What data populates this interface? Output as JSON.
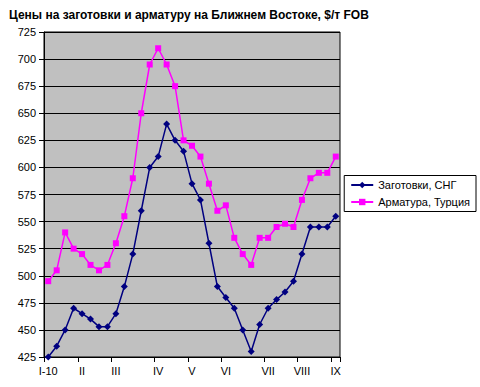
{
  "chart_data": {
    "type": "line",
    "title": "Цены на заготовки и арматуру на Ближнем Востоке, $/т FOB",
    "categories": [
      "I-10",
      null,
      null,
      null,
      "II",
      null,
      null,
      null,
      "III",
      null,
      null,
      null,
      null,
      "IV",
      null,
      null,
      null,
      "V",
      null,
      null,
      null,
      "VI",
      null,
      null,
      null,
      null,
      "VII",
      null,
      null,
      null,
      "VIII",
      null,
      null,
      null,
      "IX"
    ],
    "series": [
      {
        "name": "Заготовки, СНГ",
        "color": "#000080",
        "marker": "diamond",
        "line_style": "solid",
        "values": [
          425,
          435,
          450,
          470,
          465,
          460,
          453,
          453,
          465,
          490,
          520,
          560,
          600,
          610,
          640,
          625,
          615,
          585,
          570,
          530,
          490,
          480,
          470,
          450,
          430,
          455,
          470,
          478,
          485,
          495,
          520,
          545,
          545,
          545,
          555
        ]
      },
      {
        "name": "Арматура, Турция",
        "color": "#FF00FF",
        "marker": "square",
        "line_style": "solid",
        "values": [
          495,
          505,
          540,
          525,
          520,
          510,
          505,
          510,
          530,
          555,
          590,
          650,
          695,
          710,
          695,
          675,
          625,
          620,
          610,
          585,
          560,
          565,
          535,
          520,
          510,
          535,
          535,
          545,
          548,
          545,
          570,
          590,
          595,
          595,
          610
        ]
      }
    ],
    "ylim": [
      425,
      725
    ],
    "yticks": [
      425,
      450,
      475,
      500,
      525,
      550,
      575,
      600,
      625,
      650,
      675,
      700,
      725
    ],
    "grid": true,
    "legend": "right"
  }
}
